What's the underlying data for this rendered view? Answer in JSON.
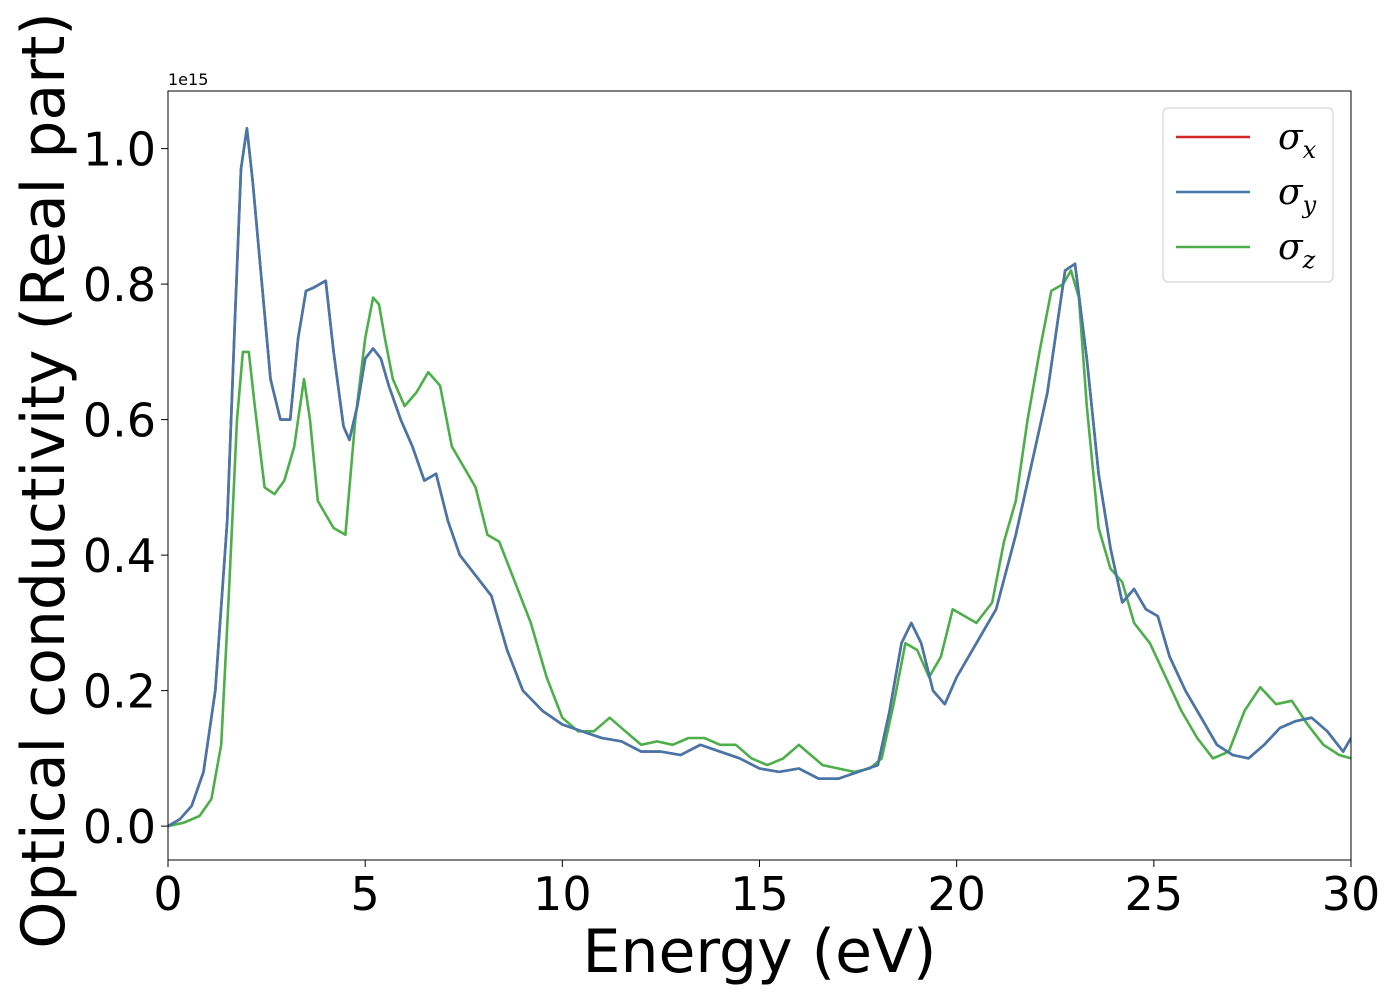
{
  "chart_data": {
    "type": "line",
    "xlabel": "Energy (eV)",
    "ylabel": "Optical conductivity (Real part)",
    "y_offset_label": "1e15",
    "xlim": [
      0,
      30
    ],
    "ylim": [
      -0.05,
      1.085
    ],
    "x_ticks": [
      0,
      5,
      10,
      15,
      20,
      25,
      30
    ],
    "x_tick_labels": [
      "0",
      "5",
      "10",
      "15",
      "20",
      "25",
      "30"
    ],
    "y_ticks": [
      0.0,
      0.2,
      0.4,
      0.6,
      0.8,
      1.0
    ],
    "y_tick_labels": [
      "0.0",
      "0.2",
      "0.4",
      "0.6",
      "0.8",
      "1.0"
    ],
    "grid": false,
    "legend_position": "top-right",
    "series": [
      {
        "name": "σx",
        "symbol": "σ",
        "subscript": "x",
        "color": "#d62728",
        "x": [
          0,
          0.3,
          0.6,
          0.9,
          1.2,
          1.5,
          1.7,
          1.85,
          2.0,
          2.15,
          2.35,
          2.6,
          2.85,
          3.1,
          3.3,
          3.5,
          3.7,
          3.85,
          4.0,
          4.2,
          4.45,
          4.6,
          4.8,
          5.0,
          5.2,
          5.4,
          5.6,
          5.9,
          6.2,
          6.5,
          6.8,
          7.1,
          7.4,
          7.8,
          8.2,
          8.6,
          9.0,
          9.5,
          10.0,
          10.5,
          11.0,
          11.5,
          12.0,
          12.5,
          13.0,
          13.5,
          14.0,
          14.5,
          15.0,
          15.5,
          16.0,
          16.5,
          17.0,
          17.5,
          18.0,
          18.3,
          18.6,
          18.85,
          19.1,
          19.4,
          19.7,
          20.0,
          20.5,
          21.0,
          21.5,
          22.0,
          22.3,
          22.55,
          22.75,
          23.0,
          23.3,
          23.6,
          23.9,
          24.2,
          24.5,
          24.8,
          25.1,
          25.4,
          25.8,
          26.2,
          26.6,
          27.0,
          27.4,
          27.8,
          28.2,
          28.6,
          29.0,
          29.4,
          29.8,
          30.0
        ],
        "y": [
          0.0,
          0.01,
          0.03,
          0.08,
          0.2,
          0.45,
          0.75,
          0.97,
          1.03,
          0.95,
          0.82,
          0.66,
          0.6,
          0.6,
          0.72,
          0.79,
          0.795,
          0.8,
          0.805,
          0.7,
          0.59,
          0.57,
          0.62,
          0.69,
          0.705,
          0.69,
          0.65,
          0.6,
          0.56,
          0.51,
          0.52,
          0.45,
          0.4,
          0.37,
          0.34,
          0.26,
          0.2,
          0.17,
          0.15,
          0.14,
          0.13,
          0.125,
          0.11,
          0.11,
          0.105,
          0.12,
          0.11,
          0.1,
          0.085,
          0.08,
          0.085,
          0.07,
          0.07,
          0.08,
          0.09,
          0.17,
          0.27,
          0.3,
          0.27,
          0.2,
          0.18,
          0.22,
          0.27,
          0.32,
          0.43,
          0.56,
          0.64,
          0.74,
          0.82,
          0.83,
          0.69,
          0.52,
          0.41,
          0.33,
          0.35,
          0.32,
          0.31,
          0.25,
          0.2,
          0.16,
          0.12,
          0.105,
          0.1,
          0.12,
          0.145,
          0.155,
          0.16,
          0.14,
          0.11,
          0.13
        ]
      },
      {
        "name": "σy",
        "symbol": "σ",
        "subscript": "y",
        "color": "#4477aa",
        "x": [
          0,
          0.3,
          0.6,
          0.9,
          1.2,
          1.5,
          1.7,
          1.85,
          2.0,
          2.15,
          2.35,
          2.6,
          2.85,
          3.1,
          3.3,
          3.5,
          3.7,
          3.85,
          4.0,
          4.2,
          4.45,
          4.6,
          4.8,
          5.0,
          5.2,
          5.4,
          5.6,
          5.9,
          6.2,
          6.5,
          6.8,
          7.1,
          7.4,
          7.8,
          8.2,
          8.6,
          9.0,
          9.5,
          10.0,
          10.5,
          11.0,
          11.5,
          12.0,
          12.5,
          13.0,
          13.5,
          14.0,
          14.5,
          15.0,
          15.5,
          16.0,
          16.5,
          17.0,
          17.5,
          18.0,
          18.3,
          18.6,
          18.85,
          19.1,
          19.4,
          19.7,
          20.0,
          20.5,
          21.0,
          21.5,
          22.0,
          22.3,
          22.55,
          22.75,
          23.0,
          23.3,
          23.6,
          23.9,
          24.2,
          24.5,
          24.8,
          25.1,
          25.4,
          25.8,
          26.2,
          26.6,
          27.0,
          27.4,
          27.8,
          28.2,
          28.6,
          29.0,
          29.4,
          29.8,
          30.0
        ],
        "y": [
          0.0,
          0.01,
          0.03,
          0.08,
          0.2,
          0.45,
          0.75,
          0.97,
          1.03,
          0.95,
          0.82,
          0.66,
          0.6,
          0.6,
          0.72,
          0.79,
          0.795,
          0.8,
          0.805,
          0.7,
          0.59,
          0.57,
          0.62,
          0.69,
          0.705,
          0.69,
          0.65,
          0.6,
          0.56,
          0.51,
          0.52,
          0.45,
          0.4,
          0.37,
          0.34,
          0.26,
          0.2,
          0.17,
          0.15,
          0.14,
          0.13,
          0.125,
          0.11,
          0.11,
          0.105,
          0.12,
          0.11,
          0.1,
          0.085,
          0.08,
          0.085,
          0.07,
          0.07,
          0.08,
          0.09,
          0.17,
          0.27,
          0.3,
          0.27,
          0.2,
          0.18,
          0.22,
          0.27,
          0.32,
          0.43,
          0.56,
          0.64,
          0.74,
          0.82,
          0.83,
          0.69,
          0.52,
          0.41,
          0.33,
          0.35,
          0.32,
          0.31,
          0.25,
          0.2,
          0.16,
          0.12,
          0.105,
          0.1,
          0.12,
          0.145,
          0.155,
          0.16,
          0.14,
          0.11,
          0.13
        ]
      },
      {
        "name": "σz",
        "symbol": "σ",
        "subscript": "z",
        "color": "#4daf4a",
        "x": [
          0,
          0.4,
          0.8,
          1.1,
          1.35,
          1.55,
          1.75,
          1.9,
          2.05,
          2.2,
          2.45,
          2.7,
          2.95,
          3.2,
          3.45,
          3.6,
          3.8,
          4.0,
          4.2,
          4.5,
          4.75,
          5.0,
          5.2,
          5.35,
          5.5,
          5.7,
          6.0,
          6.3,
          6.6,
          6.9,
          7.2,
          7.5,
          7.8,
          8.1,
          8.4,
          8.8,
          9.2,
          9.6,
          10.0,
          10.4,
          10.8,
          11.2,
          11.6,
          12.0,
          12.4,
          12.8,
          13.2,
          13.6,
          14.0,
          14.4,
          14.8,
          15.2,
          15.6,
          16.0,
          16.2,
          16.6,
          17.0,
          17.4,
          17.8,
          18.1,
          18.4,
          18.7,
          19.0,
          19.3,
          19.6,
          19.9,
          20.2,
          20.5,
          20.9,
          21.2,
          21.5,
          21.8,
          22.1,
          22.4,
          22.7,
          22.9,
          23.1,
          23.3,
          23.6,
          23.9,
          24.2,
          24.5,
          24.9,
          25.3,
          25.7,
          26.1,
          26.5,
          26.9,
          27.3,
          27.7,
          28.1,
          28.5,
          28.9,
          29.3,
          29.7,
          30.0
        ],
        "y": [
          0.0,
          0.005,
          0.015,
          0.04,
          0.12,
          0.35,
          0.6,
          0.7,
          0.7,
          0.62,
          0.5,
          0.49,
          0.51,
          0.56,
          0.66,
          0.6,
          0.48,
          0.46,
          0.44,
          0.43,
          0.6,
          0.72,
          0.78,
          0.77,
          0.72,
          0.66,
          0.62,
          0.64,
          0.67,
          0.65,
          0.56,
          0.53,
          0.5,
          0.43,
          0.42,
          0.36,
          0.3,
          0.22,
          0.16,
          0.14,
          0.14,
          0.16,
          0.14,
          0.12,
          0.125,
          0.12,
          0.13,
          0.13,
          0.12,
          0.12,
          0.1,
          0.09,
          0.1,
          0.12,
          0.11,
          0.09,
          0.085,
          0.08,
          0.085,
          0.1,
          0.18,
          0.27,
          0.26,
          0.22,
          0.25,
          0.32,
          0.31,
          0.3,
          0.33,
          0.42,
          0.48,
          0.6,
          0.7,
          0.79,
          0.8,
          0.82,
          0.78,
          0.62,
          0.44,
          0.38,
          0.36,
          0.3,
          0.27,
          0.22,
          0.17,
          0.13,
          0.1,
          0.11,
          0.17,
          0.205,
          0.18,
          0.185,
          0.15,
          0.12,
          0.105,
          0.1
        ]
      }
    ]
  }
}
